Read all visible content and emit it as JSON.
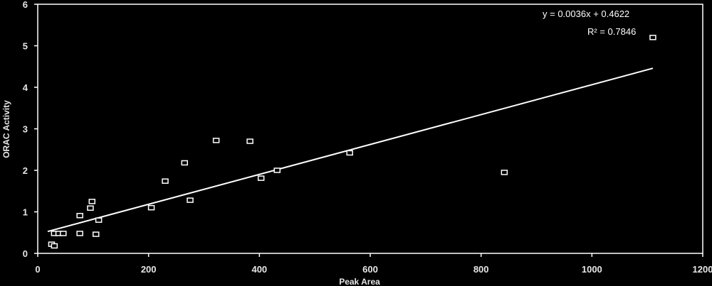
{
  "chart_data": {
    "type": "scatter",
    "xlabel": "Peak Area",
    "ylabel": "ORAC Activity",
    "xlim": [
      0,
      1200
    ],
    "ylim": [
      0,
      6
    ],
    "xticks": [
      "0",
      "200",
      "400",
      "600",
      "800",
      "1000",
      "1200"
    ],
    "yticks": [
      "0",
      "1",
      "2",
      "3",
      "4",
      "5",
      "6"
    ],
    "grid": false,
    "legend": "none",
    "points": [
      {
        "x": 25,
        "y": 0.22
      },
      {
        "x": 30,
        "y": 0.18
      },
      {
        "x": 30,
        "y": 0.48
      },
      {
        "x": 38,
        "y": 0.48
      },
      {
        "x": 46,
        "y": 0.48
      },
      {
        "x": 76,
        "y": 0.48
      },
      {
        "x": 105,
        "y": 0.46
      },
      {
        "x": 76,
        "y": 0.91
      },
      {
        "x": 95,
        "y": 1.09
      },
      {
        "x": 98,
        "y": 1.25
      },
      {
        "x": 110,
        "y": 0.8
      },
      {
        "x": 205,
        "y": 1.1
      },
      {
        "x": 230,
        "y": 1.74
      },
      {
        "x": 265,
        "y": 2.18
      },
      {
        "x": 275,
        "y": 1.28
      },
      {
        "x": 322,
        "y": 2.72
      },
      {
        "x": 383,
        "y": 2.7
      },
      {
        "x": 403,
        "y": 1.81
      },
      {
        "x": 432,
        "y": 2.0
      },
      {
        "x": 563,
        "y": 2.42
      },
      {
        "x": 842,
        "y": 1.95
      },
      {
        "x": 1110,
        "y": 5.2
      }
    ],
    "trendline": {
      "slope": 0.0036,
      "intercept": 0.4622,
      "x_range": [
        18,
        1110
      ]
    },
    "annotations": {
      "equation": "y = 0.0036x + 0.4622",
      "r_squared": "R² = 0.7846"
    },
    "colors": {
      "background": "#000000",
      "foreground": "#ffffff"
    }
  }
}
